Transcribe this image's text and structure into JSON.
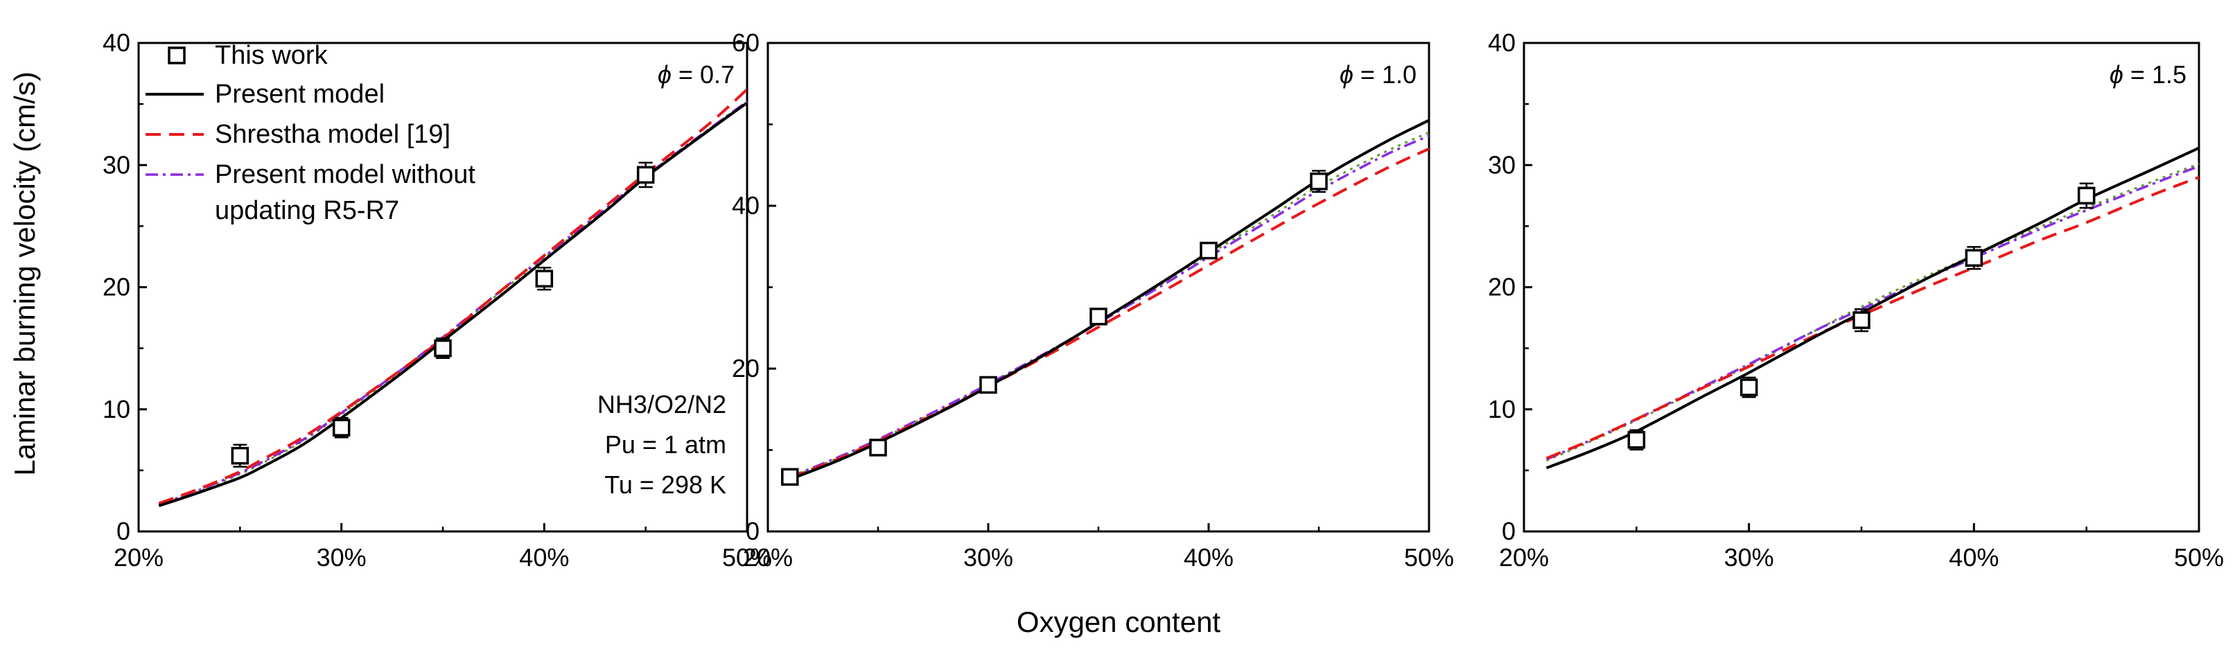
{
  "chart_data": [
    {
      "type": "line",
      "panel_label": "ϕ = 0.7",
      "xlabel": "Oxygen content",
      "ylabel": "Laminar burning velocity (cm/s)",
      "xlim": [
        0.2,
        0.5
      ],
      "ylim": [
        0,
        40
      ],
      "xticks": [
        "20%",
        "30%",
        "40%",
        "50%"
      ],
      "yticks": [
        "0",
        "10",
        "20",
        "30",
        "40"
      ],
      "annotation": [
        "NH3/O2/N2",
        "Pu = 1 atm",
        "Tu = 298 K"
      ],
      "legend": [
        {
          "label": "This work",
          "style": "square-marker"
        },
        {
          "label": "Present model",
          "style": "solid-black"
        },
        {
          "label": "Shrestha model [19]",
          "style": "dashed-red"
        },
        {
          "label": "Present model without",
          "label2": "updating R5-R7",
          "style": "dashdot-purple"
        }
      ],
      "series": [
        {
          "name": "This work",
          "kind": "scatter",
          "x": [
            0.25,
            0.3,
            0.35,
            0.4,
            0.45
          ],
          "y": [
            6.2,
            8.5,
            15.0,
            20.7,
            29.2
          ],
          "err": [
            0.9,
            0.8,
            0.8,
            0.9,
            1.0
          ]
        },
        {
          "name": "Present model",
          "kind": "line",
          "x": [
            0.21,
            0.23,
            0.25,
            0.26,
            0.28,
            0.3,
            0.33,
            0.35,
            0.38,
            0.4,
            0.43,
            0.45,
            0.48,
            0.5
          ],
          "y": [
            2.1,
            3.2,
            4.4,
            5.2,
            7.0,
            9.3,
            13.0,
            15.6,
            19.5,
            22.2,
            26.2,
            29.0,
            32.7,
            35.1
          ]
        },
        {
          "name": "Shrestha model [19]",
          "kind": "line",
          "x": [
            0.21,
            0.23,
            0.25,
            0.26,
            0.28,
            0.3,
            0.33,
            0.35,
            0.38,
            0.4,
            0.43,
            0.45,
            0.48,
            0.5
          ],
          "y": [
            2.3,
            3.5,
            4.9,
            5.8,
            7.6,
            9.8,
            13.3,
            15.8,
            19.9,
            22.6,
            26.6,
            29.3,
            33.2,
            36.2
          ]
        },
        {
          "name": "Present model without updating R5-R7",
          "kind": "line",
          "x": [
            0.21,
            0.23,
            0.25,
            0.26,
            0.28,
            0.3,
            0.33,
            0.35,
            0.38,
            0.4,
            0.43,
            0.45,
            0.48,
            0.5
          ],
          "y": [
            2.2,
            3.4,
            4.8,
            5.6,
            7.4,
            9.7,
            13.3,
            15.9,
            19.9,
            22.5,
            26.4,
            29.1,
            32.8,
            35.2
          ]
        },
        {
          "name": "",
          "kind": "line",
          "x": [
            0.21,
            0.23,
            0.25,
            0.26,
            0.28,
            0.3,
            0.33,
            0.35,
            0.38,
            0.4,
            0.43,
            0.45,
            0.48,
            0.5
          ],
          "y": [
            2.2,
            3.3,
            4.7,
            5.5,
            7.3,
            9.6,
            13.2,
            15.8,
            19.8,
            22.4,
            26.3,
            29.1,
            32.8,
            35.2
          ]
        }
      ]
    },
    {
      "type": "line",
      "panel_label": "ϕ = 1.0",
      "xlim": [
        0.2,
        0.5
      ],
      "ylim": [
        0,
        60
      ],
      "xticks": [
        "20%",
        "30%",
        "40%",
        "50%"
      ],
      "yticks": [
        "0",
        "20",
        "40",
        "60"
      ],
      "series": [
        {
          "name": "This work",
          "kind": "scatter",
          "x": [
            0.21,
            0.25,
            0.3,
            0.35,
            0.4,
            0.45
          ],
          "y": [
            6.7,
            10.3,
            18.0,
            26.4,
            34.5,
            43.0
          ],
          "err": [
            0.6,
            0.6,
            0.8,
            0.8,
            0.8,
            1.3
          ]
        },
        {
          "name": "Present model",
          "kind": "line",
          "x": [
            0.21,
            0.23,
            0.25,
            0.28,
            0.3,
            0.33,
            0.35,
            0.38,
            0.4,
            0.43,
            0.45,
            0.48,
            0.5
          ],
          "y": [
            6.4,
            8.5,
            10.9,
            14.9,
            17.8,
            22.4,
            25.7,
            30.8,
            34.3,
            39.6,
            43.2,
            47.8,
            50.5
          ]
        },
        {
          "name": "Shrestha model [19]",
          "kind": "line",
          "x": [
            0.21,
            0.23,
            0.25,
            0.28,
            0.3,
            0.33,
            0.35,
            0.38,
            0.4,
            0.43,
            0.45,
            0.48,
            0.5
          ],
          "y": [
            6.6,
            8.7,
            11.1,
            15.0,
            17.8,
            22.1,
            25.1,
            29.6,
            32.7,
            37.3,
            40.3,
            44.5,
            47.0
          ]
        },
        {
          "name": "Present model without updating R5-R7",
          "kind": "line",
          "x": [
            0.21,
            0.23,
            0.25,
            0.28,
            0.3,
            0.33,
            0.35,
            0.38,
            0.4,
            0.43,
            0.45,
            0.48,
            0.5
          ],
          "y": [
            6.7,
            8.9,
            11.3,
            15.3,
            18.1,
            22.5,
            25.6,
            30.4,
            33.7,
            38.6,
            41.9,
            46.2,
            48.6
          ]
        },
        {
          "name": "",
          "kind": "line",
          "x": [
            0.21,
            0.23,
            0.25,
            0.28,
            0.3,
            0.33,
            0.35,
            0.38,
            0.4,
            0.43,
            0.45,
            0.48,
            0.5
          ],
          "y": [
            6.6,
            8.8,
            11.2,
            15.2,
            18.0,
            22.5,
            25.7,
            30.6,
            34.0,
            39.0,
            42.4,
            46.6,
            49.0
          ]
        }
      ]
    },
    {
      "type": "line",
      "panel_label": "ϕ = 1.5",
      "xlim": [
        0.2,
        0.5
      ],
      "ylim": [
        0,
        40
      ],
      "xticks": [
        "20%",
        "30%",
        "40%",
        "50%"
      ],
      "yticks": [
        "0",
        "10",
        "20",
        "30",
        "40"
      ],
      "series": [
        {
          "name": "This work",
          "kind": "scatter",
          "x": [
            0.25,
            0.3,
            0.35,
            0.4,
            0.45
          ],
          "y": [
            7.5,
            11.8,
            17.3,
            22.4,
            27.5
          ],
          "err": [
            0.8,
            0.8,
            0.9,
            0.9,
            1.0
          ]
        },
        {
          "name": "Present model",
          "kind": "line",
          "x": [
            0.21,
            0.23,
            0.25,
            0.28,
            0.3,
            0.33,
            0.35,
            0.38,
            0.4,
            0.43,
            0.45,
            0.48,
            0.5
          ],
          "y": [
            5.2,
            6.6,
            8.2,
            11.1,
            13.0,
            16.0,
            17.9,
            20.8,
            22.6,
            25.3,
            27.2,
            29.7,
            31.4
          ]
        },
        {
          "name": "Shrestha model [19]",
          "kind": "line",
          "x": [
            0.21,
            0.23,
            0.25,
            0.28,
            0.3,
            0.33,
            0.35,
            0.38,
            0.4,
            0.43,
            0.45,
            0.48,
            0.5
          ],
          "y": [
            6.0,
            7.5,
            9.2,
            11.8,
            13.5,
            16.1,
            17.7,
            20.1,
            21.6,
            23.9,
            25.3,
            27.6,
            29.0
          ]
        },
        {
          "name": "Present model without updating R5-R7",
          "kind": "line",
          "x": [
            0.21,
            0.23,
            0.25,
            0.28,
            0.3,
            0.33,
            0.35,
            0.38,
            0.4,
            0.43,
            0.45,
            0.48,
            0.5
          ],
          "y": [
            5.9,
            7.5,
            9.2,
            11.9,
            13.7,
            16.5,
            18.2,
            20.8,
            22.4,
            24.8,
            26.3,
            28.5,
            29.9
          ]
        },
        {
          "name": "",
          "kind": "line",
          "x": [
            0.21,
            0.23,
            0.25,
            0.28,
            0.3,
            0.33,
            0.35,
            0.38,
            0.4,
            0.43,
            0.45,
            0.48,
            0.5
          ],
          "y": [
            5.8,
            7.4,
            9.1,
            11.8,
            13.6,
            16.5,
            18.4,
            21.0,
            22.6,
            25.0,
            26.5,
            28.7,
            30.1
          ]
        }
      ]
    }
  ],
  "colors": {
    "present": "#000000",
    "shrestha": "#e8191b",
    "without_update": "#8b2be2",
    "green_extra": "#5aa02c",
    "marker": "#000000"
  }
}
